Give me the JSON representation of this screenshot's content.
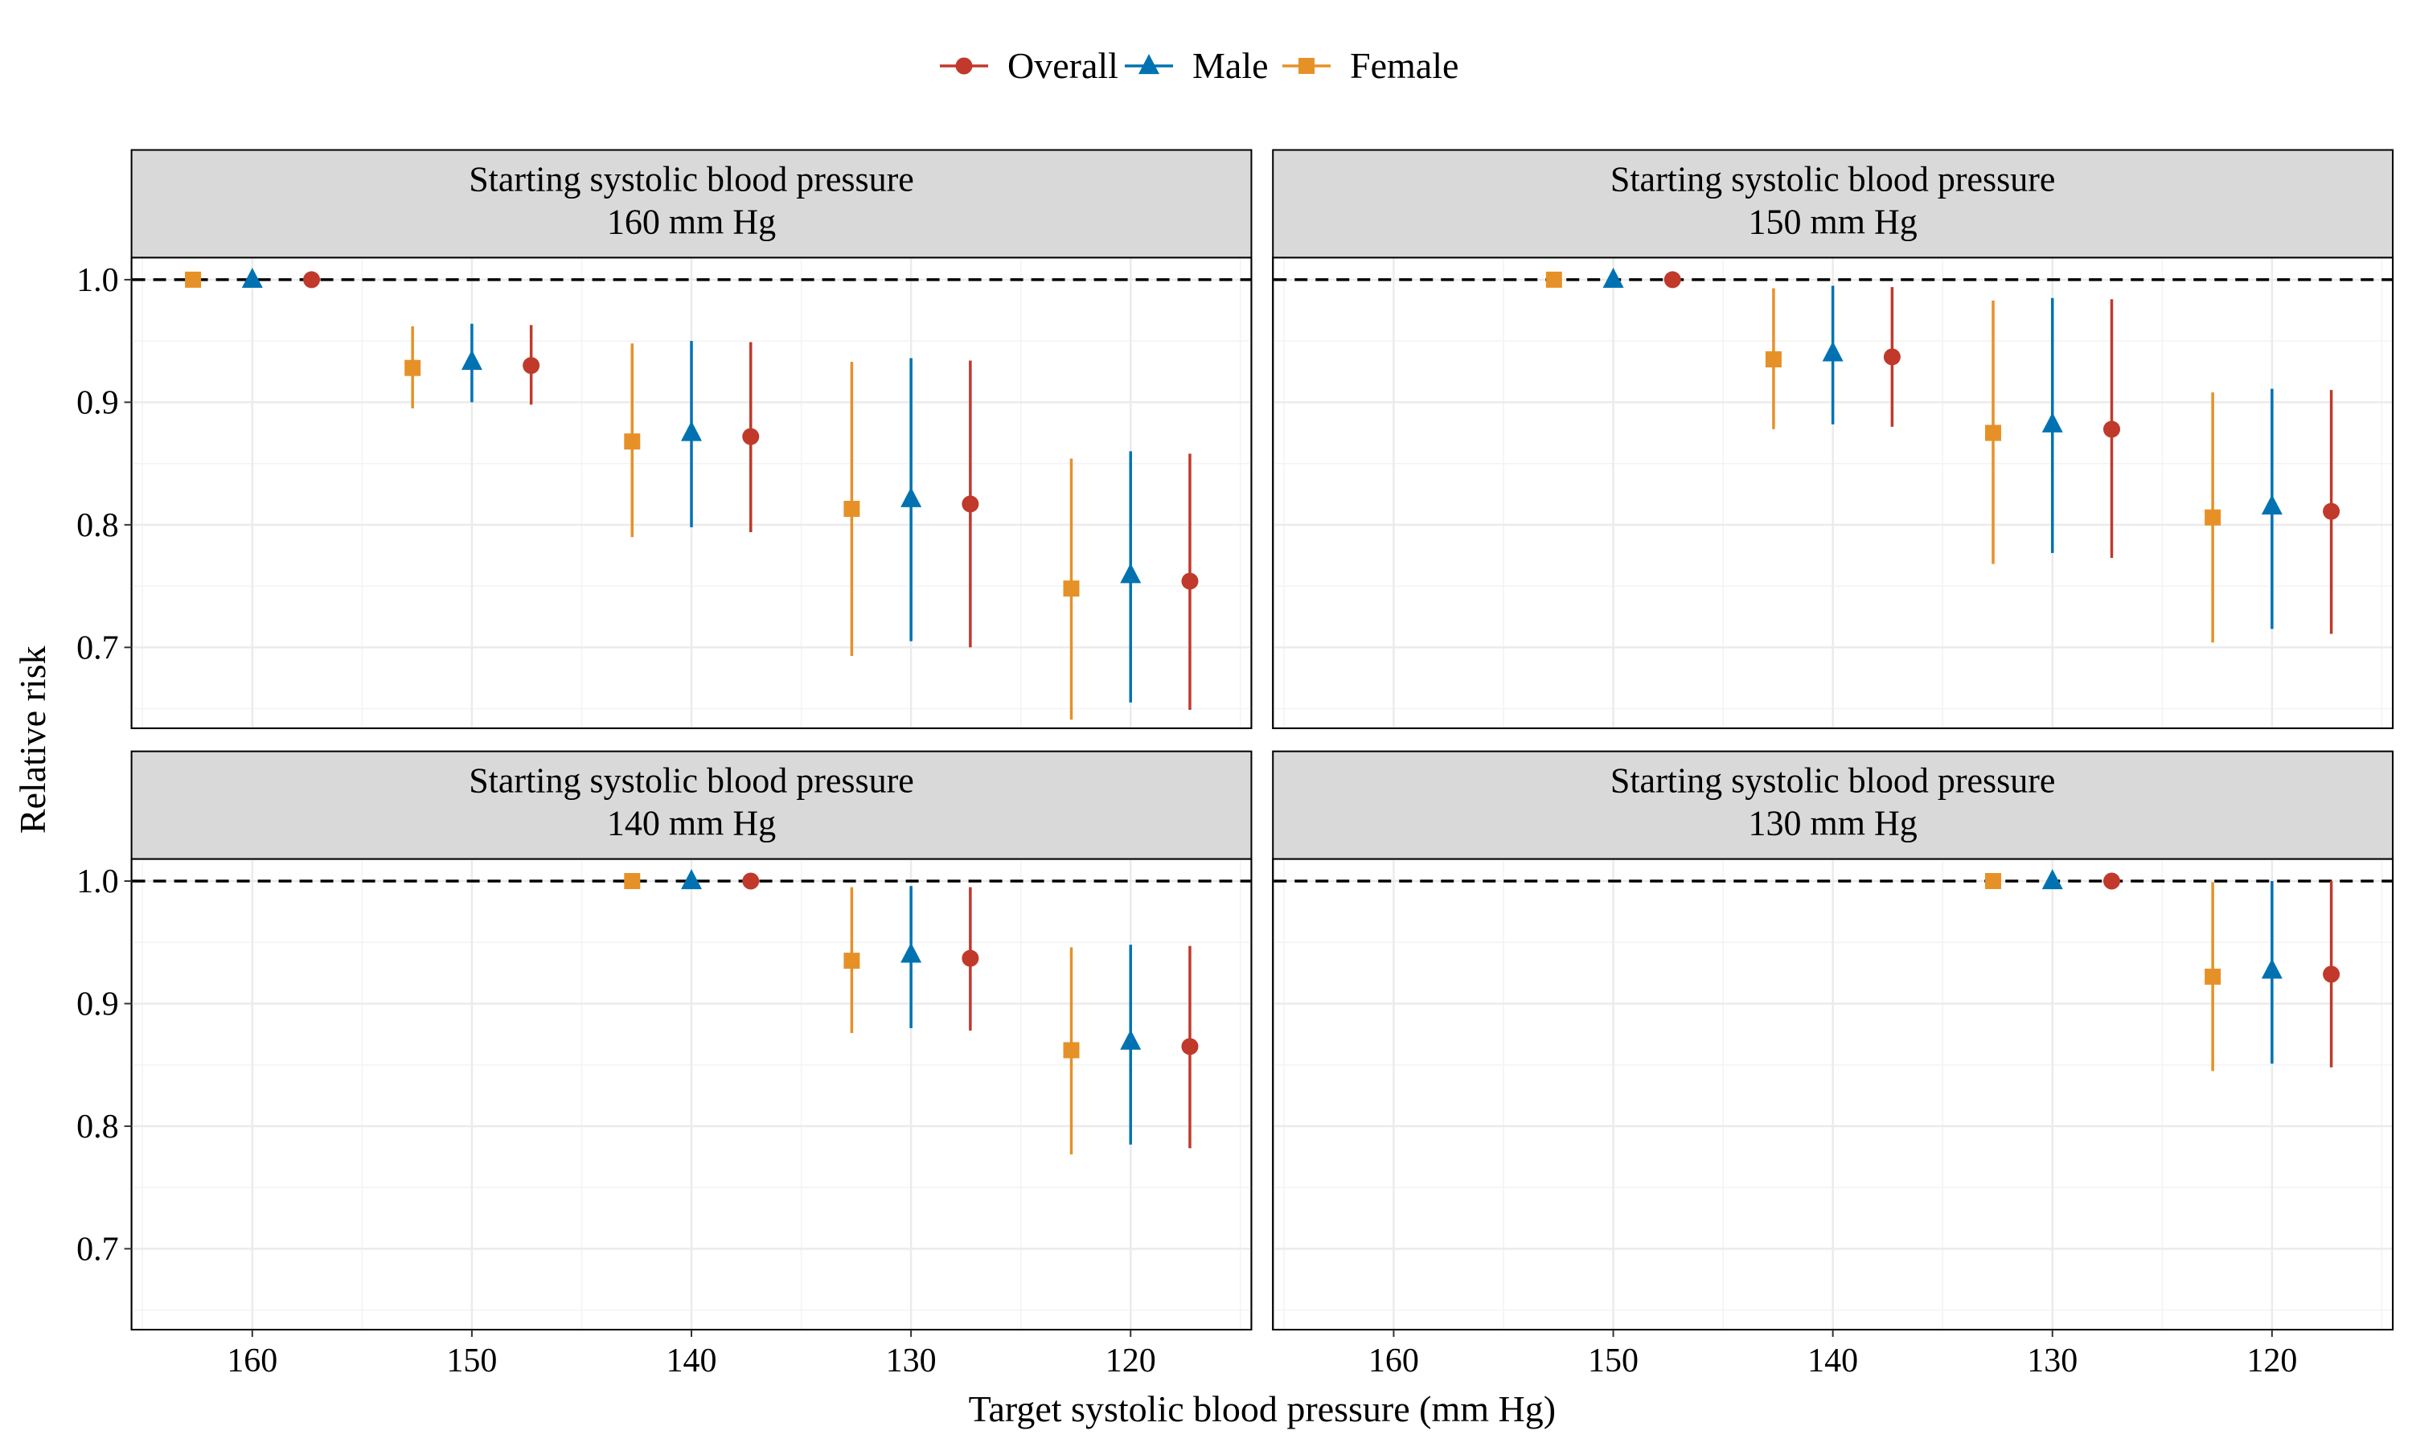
{
  "chart_data": {
    "type": "scatter",
    "subtype": "point-range faceted",
    "xlabel": "Target systolic blood pressure (mm Hg)",
    "ylabel": "Relative risk",
    "x_reversed": true,
    "xlim": [
      165.5,
      114.5
    ],
    "ylim": [
      0.634,
      1.018
    ],
    "x_ticks": [
      160,
      150,
      140,
      130,
      120
    ],
    "y_ticks": [
      1.0,
      0.9,
      0.8,
      0.7
    ],
    "y_tick_labels": [
      "1.0",
      "0.9",
      "0.8",
      "0.7"
    ],
    "reference_line": 1.0,
    "legend_position": "top",
    "series": [
      {
        "name": "Overall",
        "color": "#c0392b",
        "shape": "circle",
        "x_offset": -2.7
      },
      {
        "name": "Male",
        "color": "#0072b2",
        "shape": "triangle",
        "x_offset": 0
      },
      {
        "name": "Female",
        "color": "#e69128",
        "shape": "square",
        "x_offset": 2.7
      }
    ],
    "panels": [
      {
        "strip_line1": "Starting systolic blood pressure",
        "strip_line2": "160 mm Hg",
        "points": [
          {
            "series": "Female",
            "x": 160,
            "y": 1.0,
            "lo": 1.0,
            "hi": 1.0
          },
          {
            "series": "Male",
            "x": 160,
            "y": 1.0,
            "lo": 1.0,
            "hi": 1.0
          },
          {
            "series": "Overall",
            "x": 160,
            "y": 1.0,
            "lo": 1.0,
            "hi": 1.0
          },
          {
            "series": "Female",
            "x": 150,
            "y": 0.928,
            "lo": 0.895,
            "hi": 0.962
          },
          {
            "series": "Male",
            "x": 150,
            "y": 0.933,
            "lo": 0.9,
            "hi": 0.964
          },
          {
            "series": "Overall",
            "x": 150,
            "y": 0.93,
            "lo": 0.898,
            "hi": 0.963
          },
          {
            "series": "Female",
            "x": 140,
            "y": 0.868,
            "lo": 0.79,
            "hi": 0.948
          },
          {
            "series": "Male",
            "x": 140,
            "y": 0.875,
            "lo": 0.798,
            "hi": 0.95
          },
          {
            "series": "Overall",
            "x": 140,
            "y": 0.872,
            "lo": 0.794,
            "hi": 0.949
          },
          {
            "series": "Female",
            "x": 130,
            "y": 0.813,
            "lo": 0.693,
            "hi": 0.933
          },
          {
            "series": "Male",
            "x": 130,
            "y": 0.821,
            "lo": 0.705,
            "hi": 0.936
          },
          {
            "series": "Overall",
            "x": 130,
            "y": 0.817,
            "lo": 0.7,
            "hi": 0.934
          },
          {
            "series": "Female",
            "x": 120,
            "y": 0.748,
            "lo": 0.641,
            "hi": 0.854
          },
          {
            "series": "Male",
            "x": 120,
            "y": 0.759,
            "lo": 0.655,
            "hi": 0.86
          },
          {
            "series": "Overall",
            "x": 120,
            "y": 0.754,
            "lo": 0.649,
            "hi": 0.858
          }
        ]
      },
      {
        "strip_line1": "Starting systolic blood pressure",
        "strip_line2": "150 mm Hg",
        "points": [
          {
            "series": "Female",
            "x": 150,
            "y": 1.0,
            "lo": 1.0,
            "hi": 1.0
          },
          {
            "series": "Male",
            "x": 150,
            "y": 1.0,
            "lo": 1.0,
            "hi": 1.0
          },
          {
            "series": "Overall",
            "x": 150,
            "y": 1.0,
            "lo": 1.0,
            "hi": 1.0
          },
          {
            "series": "Female",
            "x": 140,
            "y": 0.935,
            "lo": 0.878,
            "hi": 0.993
          },
          {
            "series": "Male",
            "x": 140,
            "y": 0.94,
            "lo": 0.882,
            "hi": 0.995
          },
          {
            "series": "Overall",
            "x": 140,
            "y": 0.937,
            "lo": 0.88,
            "hi": 0.994
          },
          {
            "series": "Female",
            "x": 130,
            "y": 0.875,
            "lo": 0.768,
            "hi": 0.983
          },
          {
            "series": "Male",
            "x": 130,
            "y": 0.882,
            "lo": 0.777,
            "hi": 0.985
          },
          {
            "series": "Overall",
            "x": 130,
            "y": 0.878,
            "lo": 0.773,
            "hi": 0.984
          },
          {
            "series": "Female",
            "x": 120,
            "y": 0.806,
            "lo": 0.704,
            "hi": 0.908
          },
          {
            "series": "Male",
            "x": 120,
            "y": 0.815,
            "lo": 0.715,
            "hi": 0.911
          },
          {
            "series": "Overall",
            "x": 120,
            "y": 0.811,
            "lo": 0.711,
            "hi": 0.91
          }
        ]
      },
      {
        "strip_line1": "Starting systolic blood pressure",
        "strip_line2": "140 mm Hg",
        "points": [
          {
            "series": "Female",
            "x": 140,
            "y": 1.0,
            "lo": 1.0,
            "hi": 1.0
          },
          {
            "series": "Male",
            "x": 140,
            "y": 1.0,
            "lo": 1.0,
            "hi": 1.0
          },
          {
            "series": "Overall",
            "x": 140,
            "y": 1.0,
            "lo": 1.0,
            "hi": 1.0
          },
          {
            "series": "Female",
            "x": 130,
            "y": 0.935,
            "lo": 0.876,
            "hi": 0.995
          },
          {
            "series": "Male",
            "x": 130,
            "y": 0.94,
            "lo": 0.88,
            "hi": 0.996
          },
          {
            "series": "Overall",
            "x": 130,
            "y": 0.937,
            "lo": 0.878,
            "hi": 0.995
          },
          {
            "series": "Female",
            "x": 120,
            "y": 0.862,
            "lo": 0.777,
            "hi": 0.946
          },
          {
            "series": "Male",
            "x": 120,
            "y": 0.869,
            "lo": 0.785,
            "hi": 0.948
          },
          {
            "series": "Overall",
            "x": 120,
            "y": 0.865,
            "lo": 0.782,
            "hi": 0.947
          }
        ]
      },
      {
        "strip_line1": "Starting systolic blood pressure",
        "strip_line2": "130 mm Hg",
        "points": [
          {
            "series": "Female",
            "x": 130,
            "y": 1.0,
            "lo": 1.0,
            "hi": 1.0
          },
          {
            "series": "Male",
            "x": 130,
            "y": 1.0,
            "lo": 1.0,
            "hi": 1.0
          },
          {
            "series": "Overall",
            "x": 130,
            "y": 1.0,
            "lo": 1.0,
            "hi": 1.0
          },
          {
            "series": "Female",
            "x": 120,
            "y": 0.922,
            "lo": 0.845,
            "hi": 0.999
          },
          {
            "series": "Male",
            "x": 120,
            "y": 0.927,
            "lo": 0.851,
            "hi": 1.0
          },
          {
            "series": "Overall",
            "x": 120,
            "y": 0.924,
            "lo": 0.848,
            "hi": 1.0
          }
        ]
      }
    ]
  }
}
